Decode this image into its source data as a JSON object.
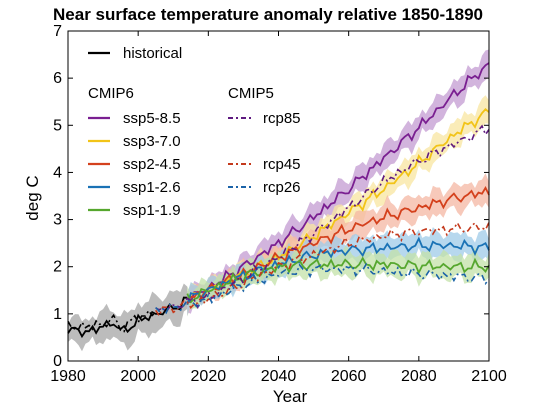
{
  "chart_data": {
    "type": "line",
    "title": "Near surface temperature anomaly relative 1850-1890",
    "xlabel": "Year",
    "ylabel": "deg C",
    "xlim": [
      1980,
      2100
    ],
    "ylim": [
      0,
      7
    ],
    "xticks": [
      "1980",
      "2000",
      "2020",
      "2040",
      "2060",
      "2080",
      "2100"
    ],
    "yticks": [
      "0",
      "1",
      "2",
      "3",
      "4",
      "5",
      "6",
      "7"
    ],
    "grid": false,
    "legend_placement": "top-left",
    "legend_groups": [
      {
        "heading": "",
        "entries": [
          "historical"
        ]
      },
      {
        "heading": "CMIP6",
        "entries": [
          "ssp5-8.5",
          "ssp3-7.0",
          "ssp2-4.5",
          "ssp1-2.6",
          "ssp1-1.9"
        ]
      },
      {
        "heading": "CMIP5",
        "entries": [
          "rcp85",
          "rcp45",
          "rcp26"
        ]
      }
    ],
    "series": [
      {
        "name": "historical",
        "group": "CMIP6",
        "style": "solid",
        "color": "#000000",
        "band_color": "#a6a6a6",
        "x": [
          1980,
          1985,
          1990,
          1993,
          1995,
          2000,
          2005,
          2010,
          2014
        ],
        "y": [
          0.65,
          0.62,
          0.72,
          0.85,
          0.6,
          0.85,
          1.0,
          1.12,
          1.3
        ],
        "band_halfwidth": [
          0.25,
          0.27,
          0.3,
          0.32,
          0.3,
          0.35,
          0.35,
          0.32,
          0.3
        ]
      },
      {
        "name": "historical",
        "group": "CMIP5",
        "style": "dashed",
        "color": "#000000",
        "x": [
          1980,
          1985,
          1990,
          1993,
          1995,
          2000,
          2005
        ],
        "y": [
          0.75,
          0.72,
          0.8,
          0.88,
          0.7,
          0.92,
          1.05
        ]
      },
      {
        "name": "ssp5-8.5",
        "group": "CMIP6",
        "style": "solid",
        "color": "#7a1f91",
        "band_color": "#c39bd1",
        "x": [
          2014,
          2020,
          2030,
          2040,
          2050,
          2060,
          2070,
          2080,
          2090,
          2100
        ],
        "y": [
          1.3,
          1.55,
          2.0,
          2.5,
          3.05,
          3.65,
          4.3,
          4.95,
          5.65,
          6.3
        ],
        "band_halfwidth": [
          0.2,
          0.2,
          0.22,
          0.25,
          0.25,
          0.25,
          0.25,
          0.25,
          0.25,
          0.25
        ]
      },
      {
        "name": "ssp3-7.0",
        "group": "CMIP6",
        "style": "solid",
        "color": "#f2c418",
        "band_color": "#f8e6a0",
        "x": [
          2014,
          2020,
          2030,
          2040,
          2050,
          2060,
          2070,
          2080,
          2090,
          2100
        ],
        "y": [
          1.3,
          1.5,
          1.85,
          2.2,
          2.65,
          3.15,
          3.65,
          4.2,
          4.8,
          5.3
        ],
        "band_halfwidth": [
          0.2,
          0.2,
          0.22,
          0.25,
          0.25,
          0.25,
          0.25,
          0.25,
          0.25,
          0.25
        ]
      },
      {
        "name": "ssp2-4.5",
        "group": "CMIP6",
        "style": "solid",
        "color": "#d4411d",
        "band_color": "#f4b7a3",
        "x": [
          2014,
          2020,
          2030,
          2040,
          2050,
          2060,
          2070,
          2080,
          2090,
          2100
        ],
        "y": [
          1.3,
          1.5,
          1.85,
          2.2,
          2.5,
          2.8,
          3.05,
          3.25,
          3.45,
          3.6
        ],
        "band_halfwidth": [
          0.2,
          0.2,
          0.22,
          0.25,
          0.25,
          0.25,
          0.25,
          0.25,
          0.25,
          0.25
        ]
      },
      {
        "name": "ssp1-2.6",
        "group": "CMIP6",
        "style": "solid",
        "color": "#1a72b5",
        "band_color": "#9fcbe8",
        "x": [
          2014,
          2020,
          2030,
          2040,
          2050,
          2060,
          2070,
          2080,
          2090,
          2100
        ],
        "y": [
          1.3,
          1.5,
          1.8,
          2.05,
          2.25,
          2.35,
          2.4,
          2.45,
          2.45,
          2.4
        ],
        "band_halfwidth": [
          0.2,
          0.2,
          0.22,
          0.25,
          0.25,
          0.25,
          0.25,
          0.25,
          0.25,
          0.25
        ]
      },
      {
        "name": "ssp1-1.9",
        "group": "CMIP6",
        "style": "solid",
        "color": "#56a72e",
        "band_color": "#c3e2a8",
        "x": [
          2014,
          2020,
          2030,
          2040,
          2050,
          2060,
          2070,
          2080,
          2090,
          2100
        ],
        "y": [
          1.3,
          1.5,
          1.8,
          2.0,
          2.05,
          2.05,
          2.05,
          2.02,
          2.0,
          2.0
        ],
        "band_halfwidth": [
          0.2,
          0.2,
          0.22,
          0.25,
          0.25,
          0.25,
          0.25,
          0.25,
          0.25,
          0.25
        ]
      },
      {
        "name": "rcp85",
        "group": "CMIP5",
        "style": "dashed",
        "color": "#5e1a80",
        "x": [
          2005,
          2020,
          2030,
          2040,
          2050,
          2060,
          2070,
          2080,
          2090,
          2100
        ],
        "y": [
          1.05,
          1.35,
          1.75,
          2.2,
          2.7,
          3.25,
          3.8,
          4.25,
          4.6,
          4.95
        ]
      },
      {
        "name": "rcp45",
        "group": "CMIP5",
        "style": "dashed",
        "color": "#c4391c",
        "x": [
          2005,
          2020,
          2030,
          2040,
          2050,
          2060,
          2070,
          2080,
          2090,
          2100
        ],
        "y": [
          1.05,
          1.3,
          1.65,
          2.0,
          2.25,
          2.5,
          2.65,
          2.75,
          2.8,
          2.85
        ]
      },
      {
        "name": "rcp26",
        "group": "CMIP5",
        "style": "dashed",
        "color": "#1b63a8",
        "x": [
          2005,
          2020,
          2030,
          2040,
          2050,
          2060,
          2070,
          2080,
          2090,
          2100
        ],
        "y": [
          1.05,
          1.3,
          1.6,
          1.85,
          1.95,
          1.95,
          1.9,
          1.85,
          1.8,
          1.75
        ]
      }
    ]
  }
}
